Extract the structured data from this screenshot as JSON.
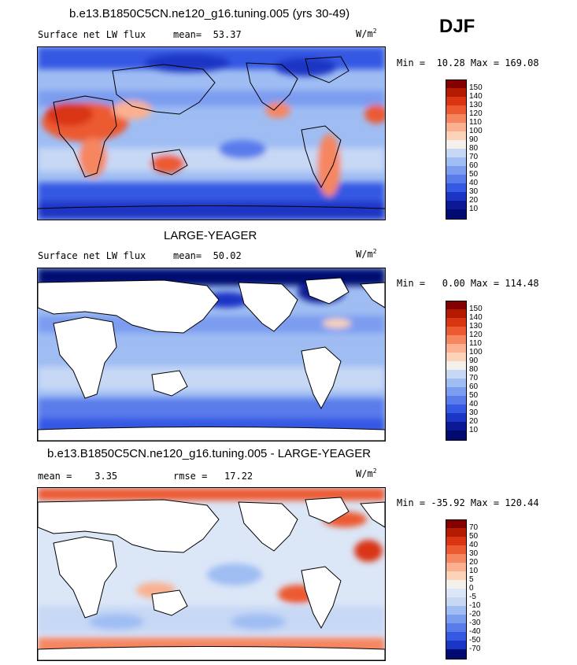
{
  "season": "DJF",
  "panels": [
    {
      "title": "b.e13.B1850C5CN.ne120_g16.tuning.005 (yrs 30-49)",
      "left_label": "Surface net LW flux",
      "mid_label": "mean=  53.37",
      "units": "W/m",
      "units_exp": "2",
      "minmax": "Min =  10.28 Max = 169.08",
      "land_masked": false,
      "colorbar": {
        "labels": [
          "150",
          "140",
          "130",
          "120",
          "110",
          "100",
          "90",
          "80",
          "70",
          "60",
          "50",
          "40",
          "30",
          "20",
          "10"
        ],
        "colors": [
          "#850000",
          "#b41a00",
          "#d93512",
          "#ec5a32",
          "#f58660",
          "#fbb090",
          "#fcd3b8",
          "#f4f0ec",
          "#c7d8f5",
          "#9fbdf3",
          "#7c9cf0",
          "#5a7ceb",
          "#3659e3",
          "#1b36c5",
          "#0b1a94",
          "#000a70"
        ]
      }
    },
    {
      "title": "LARGE-YEAGER",
      "left_label": "Surface net LW flux",
      "mid_label": "mean=  50.02",
      "units": "W/m",
      "units_exp": "2",
      "minmax": "Min =   0.00 Max = 114.48",
      "land_masked": true,
      "colorbar": {
        "labels": [
          "150",
          "140",
          "130",
          "120",
          "110",
          "100",
          "90",
          "80",
          "70",
          "60",
          "50",
          "40",
          "30",
          "20",
          "10"
        ],
        "colors": [
          "#850000",
          "#b41a00",
          "#d93512",
          "#ec5a32",
          "#f58660",
          "#fbb090",
          "#fcd3b8",
          "#f4f0ec",
          "#c7d8f5",
          "#9fbdf3",
          "#7c9cf0",
          "#5a7ceb",
          "#3659e3",
          "#1b36c5",
          "#0b1a94",
          "#000a70"
        ]
      }
    },
    {
      "title": "b.e13.B1850C5CN.ne120_g16.tuning.005 - LARGE-YEAGER",
      "left_label": "mean =    3.35",
      "mid_label": "rmse =   17.22",
      "units": "W/m",
      "units_exp": "2",
      "minmax": "Min = -35.92 Max = 120.44",
      "land_masked": true,
      "colorbar": {
        "labels": [
          "70",
          "50",
          "40",
          "30",
          "20",
          "10",
          "5",
          "0",
          "-5",
          "-10",
          "-20",
          "-30",
          "-40",
          "-50",
          "-70"
        ],
        "colors": [
          "#850000",
          "#b41a00",
          "#d93512",
          "#ec5a32",
          "#f58660",
          "#fbb090",
          "#fcd3b8",
          "#f4f0ec",
          "#dbe6f7",
          "#c7d8f5",
          "#9fbdf3",
          "#7c9cf0",
          "#5a7ceb",
          "#3659e3",
          "#1b36c5",
          "#000a70"
        ]
      }
    }
  ]
}
